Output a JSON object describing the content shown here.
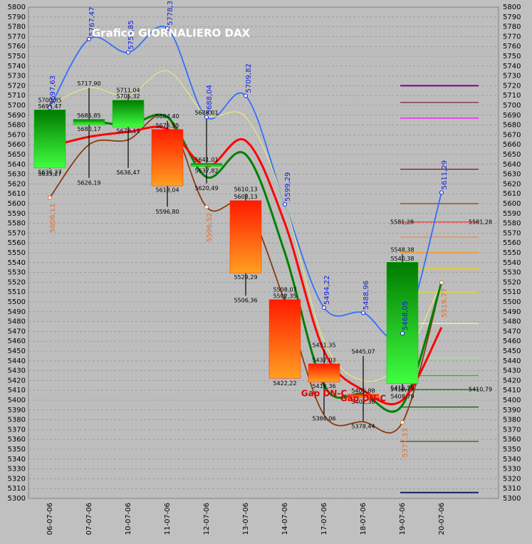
{
  "chart_data": {
    "type": "candlestick",
    "title": "Grafico GIORNALIERO DAX",
    "categories": [
      "06-07-06",
      "07-07-06",
      "10-07-06",
      "11-07-06",
      "12-07-06",
      "13-07-06",
      "14-07-06",
      "17-07-06",
      "18-07-06",
      "19-07-06",
      "20-07-06"
    ],
    "ylim": [
      5300,
      5800
    ],
    "yticks": [
      5300,
      5310,
      5320,
      5330,
      5340,
      5350,
      5360,
      5370,
      5380,
      5390,
      5400,
      5410,
      5420,
      5430,
      5440,
      5450,
      5460,
      5470,
      5480,
      5490,
      5500,
      5510,
      5520,
      5530,
      5540,
      5550,
      5560,
      5570,
      5580,
      5590,
      5600,
      5610,
      5620,
      5630,
      5640,
      5650,
      5660,
      5670,
      5680,
      5690,
      5700,
      5710,
      5720,
      5730,
      5740,
      5750,
      5760,
      5770,
      5780,
      5790,
      5800
    ],
    "grid": true,
    "candles": {
      "open": [
        5636.27,
        5680.17,
        5678.11,
        5675.55,
        5637.82,
        5603.13,
        5502.35,
        5437.03,
        5405.88,
        5416.79,
        null
      ],
      "high": [
        5700.85,
        5717.9,
        5711.04,
        5684.4,
        5688.01,
        5610.13,
        5508.07,
        5451.35,
        5445.07,
        5548.38,
        null
      ],
      "low": [
        5635.27,
        5626.19,
        5636.47,
        5596.8,
        5620.49,
        5506.36,
        5422.22,
        5386.06,
        5378.44,
        5408.79,
        null
      ],
      "close": [
        5695.47,
        5685.85,
        5705.32,
        5618.04,
        5641.01,
        5529.29,
        5422.22,
        5418.36,
        5402.38,
        5540.38,
        null
      ],
      "high_labels": [
        "5700,85",
        "5717,90",
        "5711,04",
        "5684,40",
        "5688,01",
        "5610,13",
        "5508,07",
        "5451,35",
        "5445,07",
        "5548,38",
        null
      ],
      "low_labels": [
        "5635,27",
        "5626,19",
        "5636,47",
        "5596,80",
        "5620,49",
        "5506,36",
        "5422,22",
        "5386,06",
        "5378,44",
        "5408,79",
        null
      ],
      "open_labels": [
        "5636,27",
        "5680,17",
        "5678,11",
        "5675,55",
        "5637,82",
        "5603,13",
        "5502,35",
        "5437,03",
        "5405,88",
        "5416,79",
        null
      ],
      "close_labels": [
        "5695,47",
        "5685,85",
        "5705,32",
        "5618,04",
        "5641,01",
        "5529,29",
        null,
        "5418,36",
        "5402,38",
        "5540,38",
        null
      ],
      "up_color": "#00c000",
      "down_color": "#ff3000"
    },
    "series": [
      {
        "name": "blue",
        "color": "#3070ff",
        "values": [
          5697.63,
          5767.47,
          5753.85,
          5778.32,
          5688.04,
          5709.82,
          5599.29,
          5494.22,
          5488.96,
          5468.05,
          5611.29
        ],
        "value_labels": [
          "5697,63",
          "5767,47",
          "5753,85",
          "5778,32",
          "5688,04",
          "5709,82",
          "5599,29",
          "5494,22",
          "5488,96",
          "5468,05",
          "5611,29"
        ],
        "label_color": "#1020e0"
      },
      {
        "name": "yellow",
        "color": "#f0f070",
        "values": [
          5700,
          5718,
          5710,
          5735,
          5690,
          5688,
          5600,
          5460,
          5420,
          5440,
          5520
        ]
      },
      {
        "name": "brown",
        "color": "#8a3a10",
        "values": [
          5606.11,
          5660,
          5665,
          5688,
          5596.52,
          5598,
          5500,
          5385,
          5378,
          5377.33,
          5519.77
        ],
        "value_labels": [
          "5606,11",
          null,
          null,
          null,
          "5596,52",
          null,
          null,
          null,
          null,
          "5377,33",
          "5519,77"
        ],
        "label_color": "#e07030"
      },
      {
        "name": "green",
        "color": "#008000",
        "values": [
          null,
          5685,
          5680,
          5688,
          5627,
          5650,
          5550,
          5415,
          5406,
          5395,
          5520
        ]
      },
      {
        "name": "red",
        "color": "#ff0000",
        "values": [
          5658,
          5668,
          5673,
          5676,
          5638,
          5664,
          5580,
          5450,
          5410,
          5400,
          5474
        ]
      }
    ],
    "levels": {
      "values": [
        5720,
        5703,
        5687,
        5635,
        5600,
        5581.28,
        5566,
        5550,
        5534,
        5510,
        5478,
        5443,
        5425,
        5410.79,
        5393,
        5358,
        5306
      ],
      "colors": [
        "#800080",
        "#802050",
        "#ff00ff",
        "#800000",
        "#904000",
        "#ff2020",
        "#ff8040",
        "#ff9000",
        "#ffd000",
        "#e0e000",
        "#e0ff80",
        "#80ff80",
        "#20c020",
        "#007000",
        "#006000",
        "#404000",
        "#102060"
      ],
      "value_labels": [
        null,
        null,
        null,
        null,
        null,
        "5581,28",
        null,
        null,
        null,
        null,
        null,
        null,
        null,
        "5410,79",
        null,
        null,
        null
      ]
    },
    "annotations": [
      "Gap DN-C",
      "Gap DN-C"
    ]
  }
}
